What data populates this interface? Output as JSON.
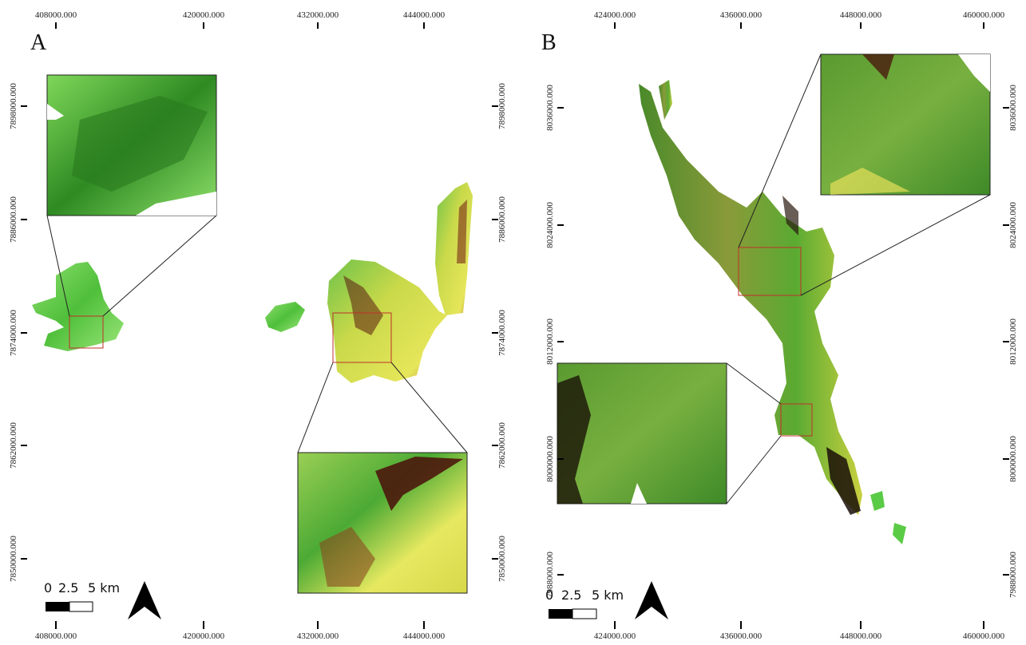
{
  "panels": [
    {
      "label": "A",
      "top_ticks": [
        "408000.000",
        "420000.000",
        "432000.000",
        "444000.000"
      ],
      "bottom_ticks": [
        "408000.000",
        "420000.000",
        "432000.000",
        "444000.000"
      ],
      "left_ticks": [
        "7898000.000",
        "7886000.000",
        "7874000.000",
        "7862000.000",
        "7850000.000"
      ],
      "right_ticks": [
        "7898000.000",
        "7886000.000",
        "7874000.000",
        "7862000.000",
        "7850000.000"
      ],
      "scale": [
        "0",
        "2.5",
        "5 km"
      ]
    },
    {
      "label": "B",
      "top_ticks": [
        "424000.000",
        "436000.000",
        "448000.000",
        "460000.000"
      ],
      "bottom_ticks": [
        "424000.000",
        "436000.000",
        "448000.000",
        "460000.000"
      ],
      "left_ticks": [
        "8036000.000",
        "8024000.000",
        "8012000.000",
        "8000000.000",
        "7988000.000"
      ],
      "right_ticks": [
        "8036000.000",
        "8024000.000",
        "8012000.000",
        "8000000.000",
        "7988000.000"
      ],
      "scale": [
        "0",
        "2.5",
        "5 km"
      ]
    }
  ]
}
